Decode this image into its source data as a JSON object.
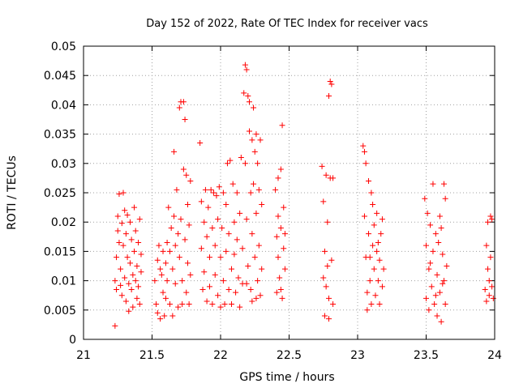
{
  "chart_data": {
    "type": "scatter",
    "title": "Day 152 of 2022, Rate Of TEC Index for receiver vacs",
    "xlabel": "GPS time / hours",
    "ylabel": "ROTI / TECUs",
    "xlim": [
      21,
      24
    ],
    "ylim": [
      0,
      0.05
    ],
    "x_ticks": [
      21,
      21.5,
      22,
      22.5,
      23,
      23.5,
      24
    ],
    "x_tick_labels": [
      "21",
      "21.5",
      "22",
      "22.5",
      "23",
      "23.5",
      "24"
    ],
    "y_ticks": [
      0,
      0.005,
      0.01,
      0.015,
      0.02,
      0.025,
      0.03,
      0.035,
      0.04,
      0.045,
      0.05
    ],
    "y_tick_labels": [
      "0",
      "0.005",
      "0.01",
      "0.015",
      "0.02",
      "0.025",
      "0.03",
      "0.035",
      "0.04",
      "0.045",
      "0.05"
    ],
    "grid": true,
    "marker": "+",
    "marker_color": "#ff0000",
    "series": [
      {
        "name": "ROTI",
        "points": [
          [
            21.23,
            0.0023
          ],
          [
            21.23,
            0.01
          ],
          [
            21.24,
            0.0085
          ],
          [
            21.24,
            0.014
          ],
          [
            21.25,
            0.0185
          ],
          [
            21.25,
            0.021
          ],
          [
            21.26,
            0.0248
          ],
          [
            21.26,
            0.0165
          ],
          [
            21.27,
            0.012
          ],
          [
            21.27,
            0.0092
          ],
          [
            21.28,
            0.0198
          ],
          [
            21.28,
            0.0075
          ],
          [
            21.29,
            0.016
          ],
          [
            21.29,
            0.025
          ],
          [
            21.3,
            0.022
          ],
          [
            21.3,
            0.0105
          ],
          [
            21.31,
            0.018
          ],
          [
            21.31,
            0.0065
          ],
          [
            21.32,
            0.014
          ],
          [
            21.32,
            0.0212
          ],
          [
            21.33,
            0.0095
          ],
          [
            21.33,
            0.0048
          ],
          [
            21.34,
            0.013
          ],
          [
            21.34,
            0.02
          ],
          [
            21.35,
            0.0085
          ],
          [
            21.35,
            0.017
          ],
          [
            21.36,
            0.011
          ],
          [
            21.36,
            0.0055
          ],
          [
            21.37,
            0.015
          ],
          [
            21.37,
            0.0225
          ],
          [
            21.38,
            0.01
          ],
          [
            21.38,
            0.0185
          ],
          [
            21.39,
            0.007
          ],
          [
            21.39,
            0.0125
          ],
          [
            21.4,
            0.0165
          ],
          [
            21.4,
            0.009
          ],
          [
            21.41,
            0.0205
          ],
          [
            21.41,
            0.006
          ],
          [
            21.42,
            0.0145
          ],
          [
            21.42,
            0.0115
          ],
          [
            21.52,
            0.01
          ],
          [
            21.53,
            0.006
          ],
          [
            21.54,
            0.0135
          ],
          [
            21.54,
            0.0045
          ],
          [
            21.55,
            0.016
          ],
          [
            21.56,
            0.0035
          ],
          [
            21.57,
            0.011
          ],
          [
            21.58,
            0.015
          ],
          [
            21.58,
            0.008
          ],
          [
            21.59,
            0.004
          ],
          [
            21.6,
            0.013
          ],
          [
            21.61,
            0.0165
          ],
          [
            21.61,
            0.01
          ],
          [
            21.62,
            0.0225
          ],
          [
            21.63,
            0.015
          ],
          [
            21.63,
            0.006
          ],
          [
            21.64,
            0.019
          ],
          [
            21.65,
            0.012
          ],
          [
            21.65,
            0.004
          ],
          [
            21.66,
            0.021
          ],
          [
            21.67,
            0.016
          ],
          [
            21.67,
            0.0095
          ],
          [
            21.68,
            0.0255
          ],
          [
            21.69,
            0.018
          ],
          [
            21.69,
            0.0055
          ],
          [
            21.7,
            0.0395
          ],
          [
            21.7,
            0.014
          ],
          [
            21.71,
            0.0405
          ],
          [
            21.71,
            0.0205
          ],
          [
            21.72,
            0.01
          ],
          [
            21.73,
            0.0405
          ],
          [
            21.73,
            0.029
          ],
          [
            21.74,
            0.0375
          ],
          [
            21.74,
            0.017
          ],
          [
            21.75,
            0.028
          ],
          [
            21.75,
            0.008
          ],
          [
            21.76,
            0.023
          ],
          [
            21.76,
            0.013
          ],
          [
            21.77,
            0.0195
          ],
          [
            21.77,
            0.006
          ],
          [
            21.78,
            0.027
          ],
          [
            21.78,
            0.011
          ],
          [
            21.66,
            0.032
          ],
          [
            21.72,
            0.006
          ],
          [
            21.6,
            0.007
          ],
          [
            21.56,
            0.012
          ],
          [
            21.85,
            0.0335
          ],
          [
            21.86,
            0.0235
          ],
          [
            21.86,
            0.0155
          ],
          [
            21.87,
            0.0085
          ],
          [
            21.88,
            0.02
          ],
          [
            21.88,
            0.0115
          ],
          [
            21.89,
            0.0255
          ],
          [
            21.9,
            0.0065
          ],
          [
            21.9,
            0.0175
          ],
          [
            21.91,
            0.0225
          ],
          [
            21.92,
            0.014
          ],
          [
            21.92,
            0.009
          ],
          [
            21.93,
            0.0255
          ],
          [
            21.94,
            0.019
          ],
          [
            21.94,
            0.006
          ],
          [
            21.95,
            0.025
          ],
          [
            21.96,
            0.016
          ],
          [
            21.96,
            0.011
          ],
          [
            21.97,
            0.0245
          ],
          [
            21.98,
            0.0205
          ],
          [
            21.98,
            0.0075
          ],
          [
            21.99,
            0.026
          ],
          [
            22.0,
            0.014
          ],
          [
            22.0,
            0.0055
          ],
          [
            22.01,
            0.019
          ],
          [
            22.02,
            0.025
          ],
          [
            22.02,
            0.01
          ],
          [
            22.03,
            0.006
          ],
          [
            22.04,
            0.023
          ],
          [
            22.04,
            0.015
          ],
          [
            22.05,
            0.03
          ],
          [
            22.06,
            0.0085
          ],
          [
            22.06,
            0.018
          ],
          [
            22.07,
            0.0305
          ],
          [
            22.08,
            0.012
          ],
          [
            22.08,
            0.006
          ],
          [
            22.09,
            0.0265
          ],
          [
            22.1,
            0.02
          ],
          [
            22.1,
            0.0145
          ],
          [
            22.11,
            0.008
          ],
          [
            22.12,
            0.025
          ],
          [
            22.12,
            0.017
          ],
          [
            22.13,
            0.0105
          ],
          [
            22.14,
            0.0055
          ],
          [
            22.14,
            0.0215
          ],
          [
            22.15,
            0.031
          ],
          [
            22.16,
            0.0155
          ],
          [
            22.16,
            0.0095
          ],
          [
            22.17,
            0.042
          ],
          [
            22.18,
            0.0468
          ],
          [
            22.18,
            0.03
          ],
          [
            22.19,
            0.046
          ],
          [
            22.19,
            0.0205
          ],
          [
            22.2,
            0.0415
          ],
          [
            22.2,
            0.0125
          ],
          [
            22.21,
            0.0405
          ],
          [
            22.21,
            0.0355
          ],
          [
            22.22,
            0.025
          ],
          [
            22.22,
            0.0085
          ],
          [
            22.23,
            0.034
          ],
          [
            22.23,
            0.018
          ],
          [
            22.24,
            0.0395
          ],
          [
            22.24,
            0.0265
          ],
          [
            22.25,
            0.032
          ],
          [
            22.25,
            0.014
          ],
          [
            22.26,
            0.035
          ],
          [
            22.26,
            0.0215
          ],
          [
            22.27,
            0.01
          ],
          [
            22.27,
            0.03
          ],
          [
            22.28,
            0.0255
          ],
          [
            22.28,
            0.016
          ],
          [
            22.29,
            0.034
          ],
          [
            22.29,
            0.0075
          ],
          [
            22.3,
            0.023
          ],
          [
            22.3,
            0.012
          ],
          [
            22.19,
            0.0095
          ],
          [
            22.23,
            0.0065
          ],
          [
            22.26,
            0.007
          ],
          [
            22.4,
            0.0255
          ],
          [
            22.41,
            0.0175
          ],
          [
            22.41,
            0.008
          ],
          [
            22.42,
            0.0275
          ],
          [
            22.42,
            0.014
          ],
          [
            22.43,
            0.0105
          ],
          [
            22.44,
            0.029
          ],
          [
            22.44,
            0.019
          ],
          [
            22.45,
            0.0365
          ],
          [
            22.45,
            0.007
          ],
          [
            22.46,
            0.0225
          ],
          [
            22.46,
            0.0155
          ],
          [
            22.47,
            0.012
          ],
          [
            22.42,
            0.021
          ],
          [
            22.44,
            0.0085
          ],
          [
            22.47,
            0.018
          ],
          [
            22.74,
            0.0295
          ],
          [
            22.75,
            0.0235
          ],
          [
            22.75,
            0.0105
          ],
          [
            22.76,
            0.004
          ],
          [
            22.77,
            0.028
          ],
          [
            22.77,
            0.009
          ],
          [
            22.78,
            0.02
          ],
          [
            22.78,
            0.0125
          ],
          [
            22.79,
            0.0415
          ],
          [
            22.79,
            0.0035
          ],
          [
            22.8,
            0.044
          ],
          [
            22.8,
            0.0275
          ],
          [
            22.81,
            0.0435
          ],
          [
            22.81,
            0.0135
          ],
          [
            22.82,
            0.006
          ],
          [
            22.82,
            0.0275
          ],
          [
            22.76,
            0.015
          ],
          [
            22.79,
            0.007
          ],
          [
            23.04,
            0.033
          ],
          [
            23.05,
            0.032
          ],
          [
            23.05,
            0.021
          ],
          [
            23.06,
            0.03
          ],
          [
            23.06,
            0.014
          ],
          [
            23.07,
            0.008
          ],
          [
            23.08,
            0.027
          ],
          [
            23.08,
            0.018
          ],
          [
            23.09,
            0.01
          ],
          [
            23.1,
            0.025
          ],
          [
            23.1,
            0.006
          ],
          [
            23.11,
            0.016
          ],
          [
            23.12,
            0.012
          ],
          [
            23.12,
            0.0195
          ],
          [
            23.13,
            0.0075
          ],
          [
            23.14,
            0.015
          ],
          [
            23.14,
            0.0215
          ],
          [
            23.15,
            0.01
          ],
          [
            23.16,
            0.0135
          ],
          [
            23.16,
            0.006
          ],
          [
            23.17,
            0.018
          ],
          [
            23.18,
            0.009
          ],
          [
            23.18,
            0.0205
          ],
          [
            23.19,
            0.012
          ],
          [
            23.07,
            0.005
          ],
          [
            23.11,
            0.023
          ],
          [
            23.15,
            0.0165
          ],
          [
            23.09,
            0.014
          ],
          [
            23.49,
            0.024
          ],
          [
            23.5,
            0.016
          ],
          [
            23.5,
            0.007
          ],
          [
            23.51,
            0.0215
          ],
          [
            23.52,
            0.012
          ],
          [
            23.52,
            0.005
          ],
          [
            23.53,
            0.0195
          ],
          [
            23.54,
            0.009
          ],
          [
            23.55,
            0.0265
          ],
          [
            23.55,
            0.015
          ],
          [
            23.56,
            0.006
          ],
          [
            23.57,
            0.018
          ],
          [
            23.58,
            0.011
          ],
          [
            23.58,
            0.004
          ],
          [
            23.59,
            0.0165
          ],
          [
            23.6,
            0.021
          ],
          [
            23.6,
            0.008
          ],
          [
            23.61,
            0.003
          ],
          [
            23.62,
            0.0145
          ],
          [
            23.63,
            0.0265
          ],
          [
            23.63,
            0.01
          ],
          [
            23.64,
            0.024
          ],
          [
            23.64,
            0.006
          ],
          [
            23.65,
            0.0125
          ],
          [
            23.53,
            0.013
          ],
          [
            23.57,
            0.0075
          ],
          [
            23.61,
            0.019
          ],
          [
            23.62,
            0.0095
          ],
          [
            23.93,
            0.0085
          ],
          [
            23.94,
            0.016
          ],
          [
            23.94,
            0.0065
          ],
          [
            23.95,
            0.012
          ],
          [
            23.95,
            0.02
          ],
          [
            23.96,
            0.01
          ],
          [
            23.96,
            0.0075
          ],
          [
            23.97,
            0.021
          ],
          [
            23.97,
            0.014
          ],
          [
            23.98,
            0.009
          ],
          [
            23.98,
            0.0205
          ],
          [
            23.99,
            0.007
          ]
        ]
      }
    ]
  }
}
